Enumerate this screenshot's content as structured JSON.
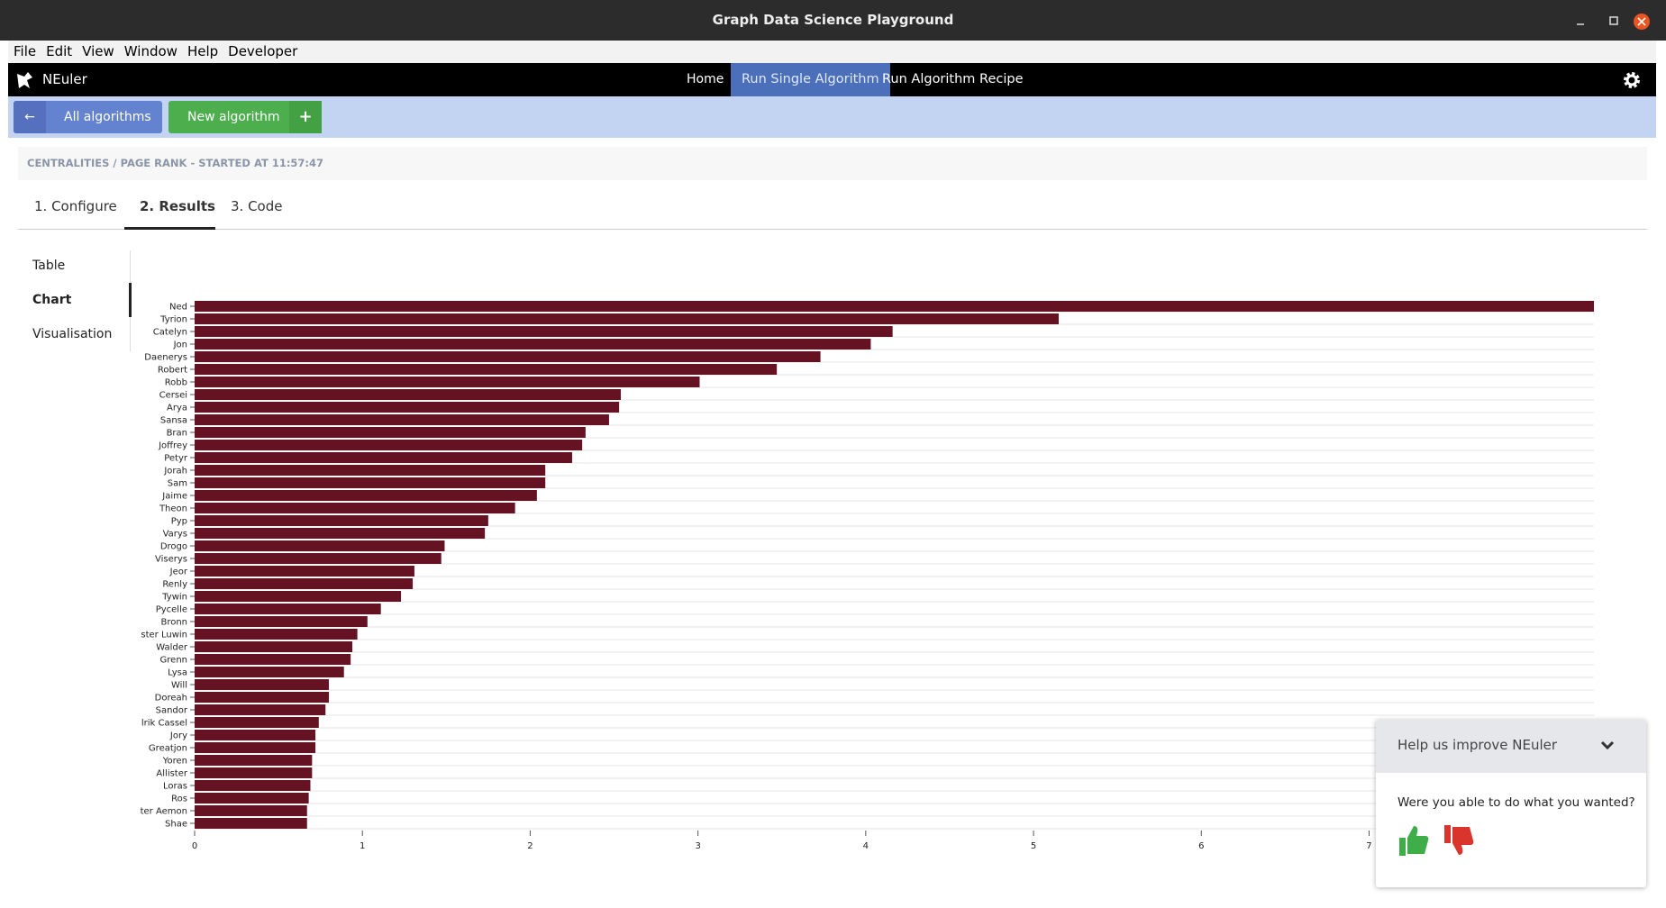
{
  "window": {
    "title": "Graph Data Science Playground"
  },
  "menu": [
    "File",
    "Edit",
    "View",
    "Window",
    "Help",
    "Developer"
  ],
  "nav": {
    "brand": "NEuler",
    "links": [
      "Home",
      "Run Single Algorithm",
      "Run Algorithm Recipe"
    ]
  },
  "toolbar": {
    "back": "All algorithms",
    "new": "New algorithm"
  },
  "breadcrumb": "CENTRALITIES / PAGE RANK - STARTED AT 11:57:47",
  "tabs": [
    "1. Configure",
    "2. Results",
    "3. Code"
  ],
  "side_menu": [
    "Table",
    "Chart",
    "Visualisation"
  ],
  "feedback": {
    "title": "Help us improve NEuler",
    "question": "Were you able to do what you wanted?"
  },
  "chart_data": {
    "type": "bar",
    "orientation": "horizontal",
    "color": "#651223",
    "categories": [
      "Ned",
      "Tyrion",
      "Catelyn",
      "Jon",
      "Daenerys",
      "Robert",
      "Robb",
      "Cersei",
      "Arya",
      "Sansa",
      "Bran",
      "Joffrey",
      "Petyr",
      "Jorah",
      "Sam",
      "Jaime",
      "Theon",
      "Pyp",
      "Varys",
      "Drogo",
      "Viserys",
      "Jeor",
      "Renly",
      "Tywin",
      "Pycelle",
      "Bronn",
      "ster Luwin",
      "Walder",
      "Grenn",
      "Lysa",
      "Will",
      "Doreah",
      "Sandor",
      "lrik Cassel",
      "Jory",
      "Greatjon",
      "Yoren",
      "Allister",
      "Loras",
      "Ros",
      "ter Aemon",
      "Shae"
    ],
    "values": [
      8.34,
      5.15,
      4.16,
      4.03,
      3.73,
      3.47,
      3.01,
      2.54,
      2.53,
      2.47,
      2.33,
      2.31,
      2.25,
      2.09,
      2.09,
      2.04,
      1.91,
      1.75,
      1.73,
      1.49,
      1.47,
      1.31,
      1.3,
      1.23,
      1.11,
      1.03,
      0.97,
      0.94,
      0.93,
      0.89,
      0.8,
      0.8,
      0.78,
      0.74,
      0.72,
      0.72,
      0.7,
      0.7,
      0.69,
      0.68,
      0.67,
      0.67
    ],
    "xlim": [
      0,
      8.34
    ],
    "xticks": [
      0,
      1,
      2,
      3,
      4,
      5,
      6,
      7
    ]
  }
}
